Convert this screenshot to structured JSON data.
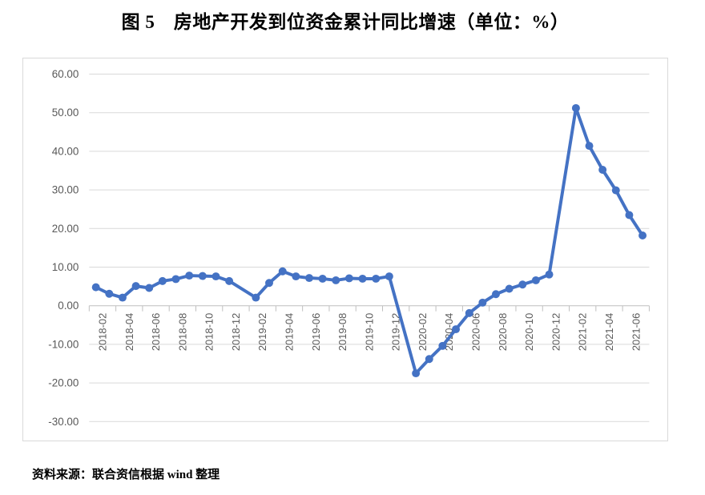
{
  "figure": {
    "title": "图 5　房地产开发到位资金累计同比增速（单位：%）",
    "source": "资料来源：联合资信根据 wind 整理"
  },
  "colors": {
    "line": "#4472C4",
    "marker": "#4472C4",
    "gridline": "#D9D9D9",
    "axis_line": "#BFBFBF",
    "tick_label": "#595959",
    "chart_border": "#D9D9D9",
    "text": "#000000",
    "background": "#FFFFFF"
  },
  "chart_data": {
    "type": "line",
    "title": "房地产开发到位资金累计同比增速",
    "unit": "%",
    "xlabel": "",
    "ylabel": "",
    "ylim": [
      -30,
      60
    ],
    "y_tick_values": [
      60,
      50,
      40,
      30,
      20,
      10,
      0,
      -10,
      -20,
      -30
    ],
    "y_tick_labels": [
      "60.00",
      "50.00",
      "40.00",
      "30.00",
      "20.00",
      "10.00",
      "0.00",
      "-10.00",
      "-20.00",
      "-30.00"
    ],
    "x_tick_labels": [
      "2018-02",
      "2018-04",
      "2018-06",
      "2018-08",
      "2018-10",
      "2018-12",
      "2019-02",
      "2019-04",
      "2019-06",
      "2019-08",
      "2019-10",
      "2019-12",
      "2020-02",
      "2020-04",
      "2020-06",
      "2020-08",
      "2020-10",
      "2020-12",
      "2021-02",
      "2021-04",
      "2021-06"
    ],
    "x": [
      "2018-02",
      "2018-03",
      "2018-04",
      "2018-05",
      "2018-06",
      "2018-07",
      "2018-08",
      "2018-09",
      "2018-10",
      "2018-11",
      "2018-12",
      "2019-02",
      "2019-03",
      "2019-04",
      "2019-05",
      "2019-06",
      "2019-07",
      "2019-08",
      "2019-09",
      "2019-10",
      "2019-11",
      "2019-12",
      "2020-02",
      "2020-03",
      "2020-04",
      "2020-05",
      "2020-06",
      "2020-07",
      "2020-08",
      "2020-09",
      "2020-10",
      "2020-11",
      "2020-12",
      "2021-02",
      "2021-03",
      "2021-04",
      "2021-05",
      "2021-06",
      "2021-07"
    ],
    "values": [
      4.8,
      3.1,
      2.1,
      5.1,
      4.6,
      6.4,
      6.9,
      7.8,
      7.7,
      7.6,
      6.4,
      2.1,
      5.9,
      8.9,
      7.6,
      7.2,
      7.0,
      6.6,
      7.1,
      7.0,
      7.0,
      7.6,
      -17.5,
      -13.8,
      -10.4,
      -6.1,
      -1.9,
      0.8,
      3.0,
      4.4,
      5.5,
      6.6,
      8.1,
      51.2,
      41.4,
      35.2,
      29.9,
      23.5,
      18.2
    ],
    "grid": true,
    "legend": false,
    "marker_style": "circle"
  }
}
